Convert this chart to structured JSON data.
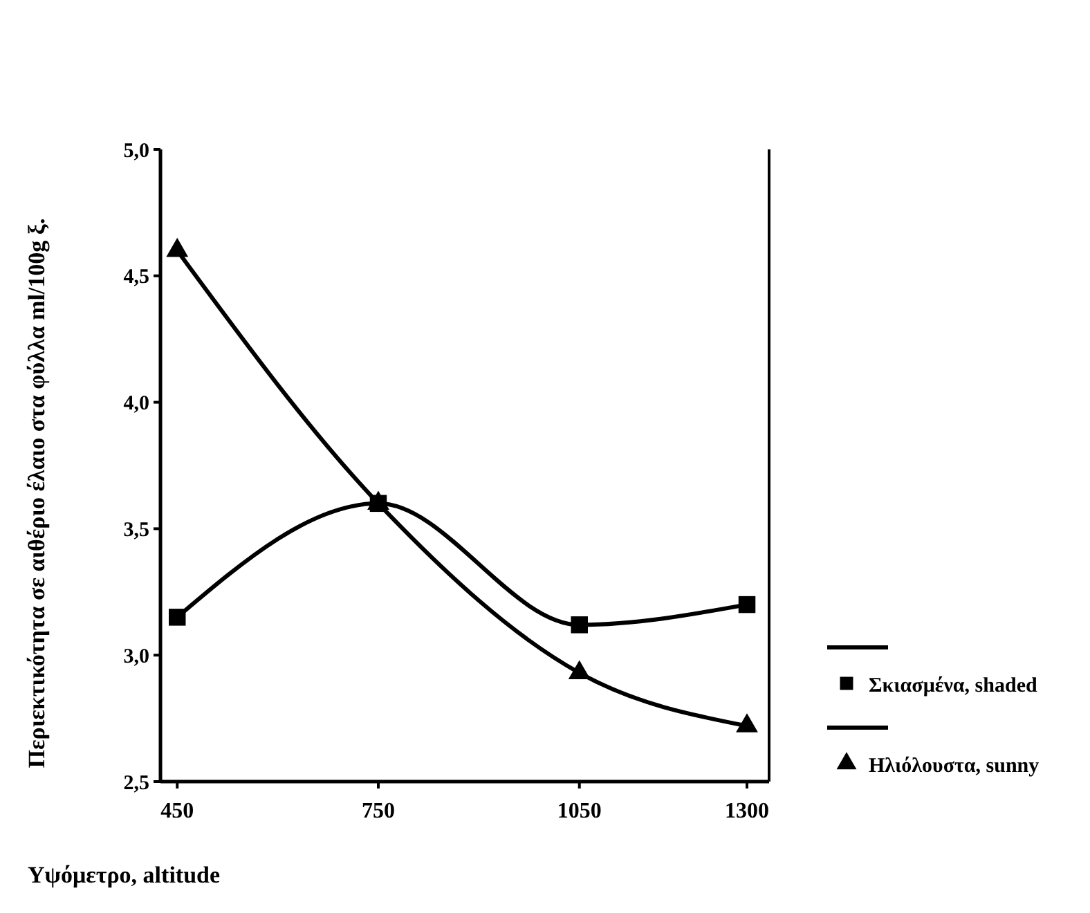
{
  "chart_data": {
    "type": "line",
    "xlabel": "Υψόμετρο, altitude",
    "ylabel": "Περιεκτικότητα σε αιθέριο έλαιο στα φύλλα ml/100g ξ.",
    "x": [
      450,
      750,
      1050,
      1300
    ],
    "xlim": [
      425,
      1333
    ],
    "xticks": [
      450,
      750,
      1050,
      1300
    ],
    "ylim": [
      2.5,
      5.0
    ],
    "yticks": [
      {
        "value": 2.5,
        "label": "2,5"
      },
      {
        "value": 3.0,
        "label": "3,0"
      },
      {
        "value": 3.5,
        "label": "3,5"
      },
      {
        "value": 4.0,
        "label": "4,0"
      },
      {
        "value": 4.5,
        "label": "4,5"
      },
      {
        "value": 5.0,
        "label": "5,0"
      }
    ],
    "series": [
      {
        "name": "Σκιασμένα, shaded",
        "color": "#000000",
        "marker": "square",
        "values": [
          3.15,
          3.6,
          3.12,
          3.2
        ]
      },
      {
        "name": "Ηλιόλουστα, sunny",
        "color": "#000000",
        "marker": "triangle",
        "values": [
          4.6,
          3.6,
          2.93,
          2.72
        ]
      }
    ],
    "legend": "right",
    "grid": false
  }
}
